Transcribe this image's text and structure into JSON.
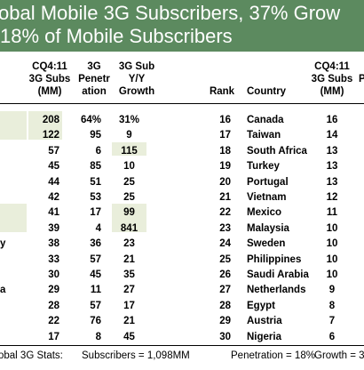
{
  "chart_data": {
    "type": "table",
    "title_lines": [
      "obal Mobile 3G Subscribers, 37% Grow",
      "18% of Mobile Subscribers"
    ],
    "headers": {
      "cq_subs_left": [
        "CQ4:11",
        "3G Subs",
        "(MM)"
      ],
      "penetration": [
        "3G",
        "Penetr",
        "ation"
      ],
      "growth": [
        "3G Sub",
        "Y/Y",
        "Growth"
      ],
      "rank": "Rank",
      "country": "Country",
      "cq_subs_right": [
        "CQ4:11",
        "3G Subs",
        "(MM)"
      ],
      "cut_off": "P"
    },
    "left_rows": [
      {
        "label": "",
        "subs": "208",
        "pen": "64%",
        "growth": "31%"
      },
      {
        "label": "",
        "subs": "122",
        "pen": "95",
        "growth": "9"
      },
      {
        "label": "",
        "subs": "57",
        "pen": "6",
        "growth": "115"
      },
      {
        "label": "",
        "subs": "45",
        "pen": "85",
        "growth": "10"
      },
      {
        "label": "",
        "subs": "44",
        "pen": "51",
        "growth": "25"
      },
      {
        "label": "",
        "subs": "42",
        "pen": "53",
        "growth": "25"
      },
      {
        "label": "",
        "subs": "41",
        "pen": "17",
        "growth": "99"
      },
      {
        "label": "",
        "subs": "39",
        "pen": "4",
        "growth": "841"
      },
      {
        "label": "y",
        "subs": "38",
        "pen": "36",
        "growth": "23"
      },
      {
        "label": "",
        "subs": "33",
        "pen": "57",
        "growth": "21"
      },
      {
        "label": "",
        "subs": "30",
        "pen": "45",
        "growth": "35"
      },
      {
        "label": "a",
        "subs": "29",
        "pen": "11",
        "growth": "27"
      },
      {
        "label": "",
        "subs": "28",
        "pen": "57",
        "growth": "17"
      },
      {
        "label": "",
        "subs": "22",
        "pen": "76",
        "growth": "21"
      },
      {
        "label": "",
        "subs": "17",
        "pen": "8",
        "growth": "45"
      }
    ],
    "right_rows": [
      {
        "rank": "16",
        "country": "Canada",
        "subs": "16"
      },
      {
        "rank": "17",
        "country": "Taiwan",
        "subs": "14"
      },
      {
        "rank": "18",
        "country": "South Africa",
        "subs": "13"
      },
      {
        "rank": "19",
        "country": "Turkey",
        "subs": "13"
      },
      {
        "rank": "20",
        "country": "Portugal",
        "subs": "13"
      },
      {
        "rank": "21",
        "country": "Vietnam",
        "subs": "12"
      },
      {
        "rank": "22",
        "country": "Mexico",
        "subs": "11"
      },
      {
        "rank": "23",
        "country": "Malaysia",
        "subs": "10"
      },
      {
        "rank": "24",
        "country": "Sweden",
        "subs": "10"
      },
      {
        "rank": "25",
        "country": "Philippines",
        "subs": "10"
      },
      {
        "rank": "26",
        "country": "Saudi Arabia",
        "subs": "10"
      },
      {
        "rank": "27",
        "country": "Netherlands",
        "subs": "9"
      },
      {
        "rank": "28",
        "country": "Egypt",
        "subs": "8"
      },
      {
        "rank": "29",
        "country": "Austria",
        "subs": "7"
      },
      {
        "rank": "30",
        "country": "Nigeria",
        "subs": "6"
      }
    ],
    "footer": {
      "stats_label": "obal 3G Stats:",
      "subscribers": "Subscribers = 1,098MM",
      "penetration": "Penetration = 18%",
      "growth": "Growth = 3"
    },
    "highlight_color": "#e9eedb",
    "title_bar_color": "#5c8a5f"
  }
}
